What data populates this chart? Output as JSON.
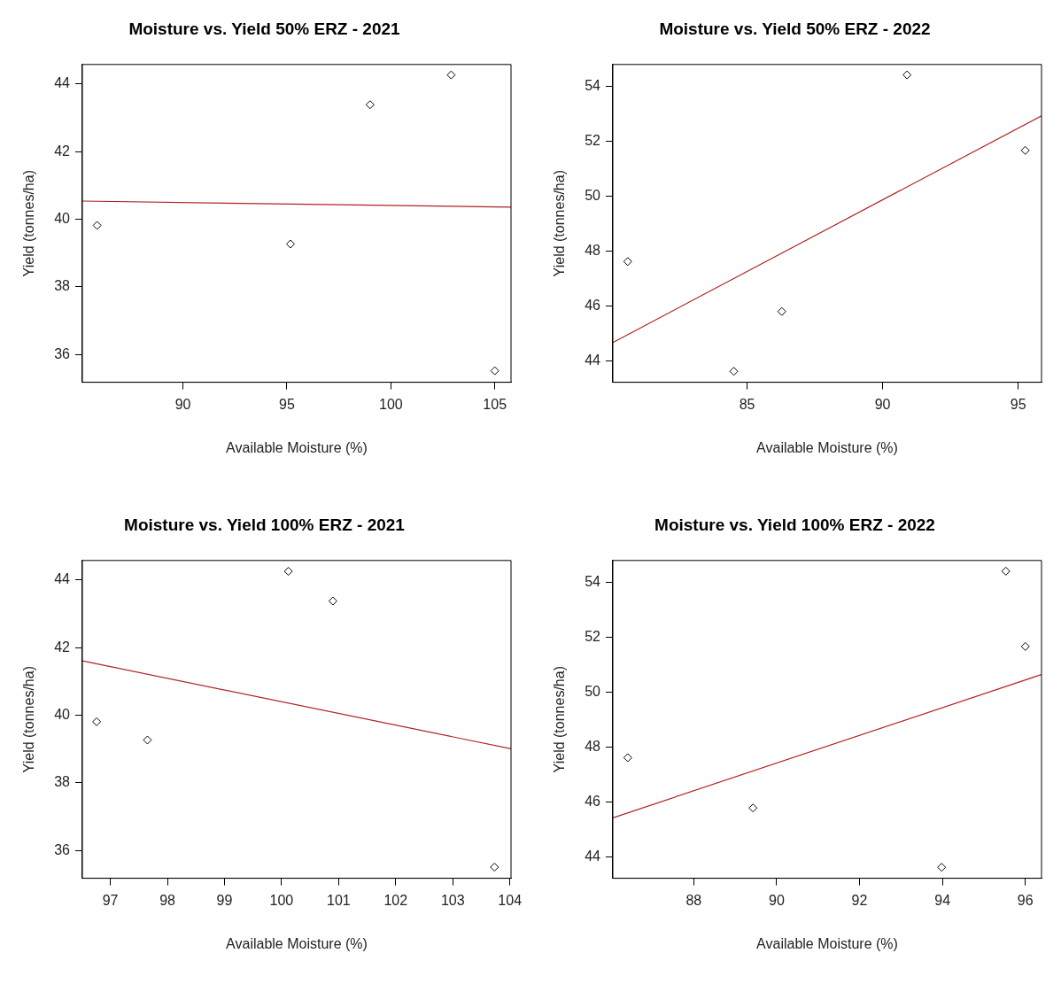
{
  "chart_data": [
    {
      "type": "scatter",
      "title": "Moisture vs. Yield 50% ERZ - 2021",
      "xlabel": "Available Moisture (%)",
      "ylabel": "Yield (tonnes/ha)",
      "xlim": [
        85.16,
        105.78
      ],
      "ylim": [
        35.18,
        44.58
      ],
      "xticks": [
        90,
        95,
        100,
        105
      ],
      "yticks": [
        36,
        38,
        40,
        42,
        44
      ],
      "series": [
        {
          "type": "scatter",
          "marker": "diamond",
          "color": "#000000",
          "x": [
            85.87,
            95.17,
            99.0,
            102.9,
            105.0
          ],
          "values": [
            39.82,
            39.27,
            43.39,
            44.27,
            35.52
          ]
        },
        {
          "type": "line",
          "marker": "none",
          "color": "#b22222",
          "x": [
            85.16,
            105.78
          ],
          "values": [
            40.54,
            40.36
          ]
        }
      ]
    },
    {
      "type": "scatter",
      "title": "Moisture vs. Yield 50% ERZ - 2022",
      "xlabel": "Available Moisture (%)",
      "ylabel": "Yield (tonnes/ha)",
      "xlim": [
        80.05,
        95.86
      ],
      "ylim": [
        43.23,
        54.81
      ],
      "xticks": [
        85,
        90,
        95
      ],
      "yticks": [
        44,
        46,
        48,
        50,
        52,
        54
      ],
      "series": [
        {
          "type": "scatter",
          "marker": "diamond",
          "color": "#000000",
          "x": [
            80.6,
            84.51,
            86.28,
            90.9,
            95.26
          ],
          "values": [
            47.63,
            43.63,
            45.81,
            54.43,
            51.68
          ]
        },
        {
          "type": "line",
          "marker": "none",
          "color": "#b22222",
          "x": [
            80.05,
            95.86
          ],
          "values": [
            44.68,
            52.94
          ]
        }
      ]
    },
    {
      "type": "scatter",
      "title": "Moisture vs. Yield 100% ERZ - 2021",
      "xlabel": "Available Moisture (%)",
      "ylabel": "Yield (tonnes/ha)",
      "xlim": [
        96.51,
        104.02
      ],
      "ylim": [
        35.18,
        44.58
      ],
      "xticks": [
        97,
        98,
        99,
        100,
        101,
        102,
        103,
        104
      ],
      "yticks": [
        36,
        38,
        40,
        42,
        44
      ],
      "series": [
        {
          "type": "scatter",
          "marker": "diamond",
          "color": "#000000",
          "x": [
            96.76,
            97.65,
            100.12,
            100.9,
            103.73
          ],
          "values": [
            39.81,
            39.27,
            44.26,
            43.38,
            35.51
          ]
        },
        {
          "type": "line",
          "marker": "none",
          "color": "#b22222",
          "x": [
            96.51,
            104.02
          ],
          "values": [
            41.61,
            39.01
          ]
        }
      ]
    },
    {
      "type": "scatter",
      "title": "Moisture vs. Yield 100% ERZ - 2022",
      "xlabel": "Available Moisture (%)",
      "ylabel": "Yield (tonnes/ha)",
      "xlim": [
        86.05,
        96.39
      ],
      "ylim": [
        43.23,
        54.8
      ],
      "xticks": [
        88,
        90,
        92,
        94,
        96
      ],
      "yticks": [
        44,
        46,
        48,
        50,
        52,
        54
      ],
      "series": [
        {
          "type": "scatter",
          "marker": "diamond",
          "color": "#000000",
          "x": [
            86.41,
            89.43,
            93.98,
            95.53,
            96.0
          ],
          "values": [
            47.62,
            45.79,
            43.63,
            54.41,
            51.67
          ]
        },
        {
          "type": "line",
          "marker": "none",
          "color": "#b22222",
          "x": [
            86.05,
            96.39
          ],
          "values": [
            45.43,
            50.65
          ]
        }
      ]
    }
  ]
}
